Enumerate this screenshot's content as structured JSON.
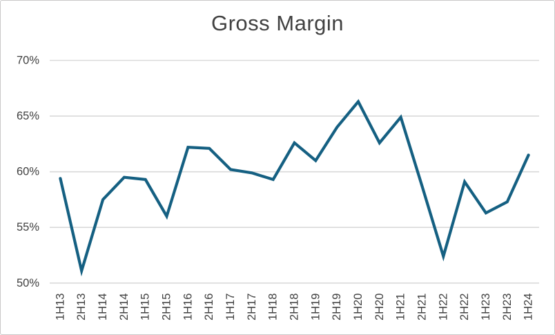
{
  "chart_data": {
    "type": "line",
    "title": "Gross Margin",
    "categories": [
      "1H13",
      "2H13",
      "1H14",
      "2H14",
      "1H15",
      "2H15",
      "1H16",
      "2H16",
      "1H17",
      "2H17",
      "1H18",
      "2H18",
      "1H19",
      "2H19",
      "1H20",
      "2H20",
      "1H21",
      "2H21",
      "1H22",
      "2H22",
      "1H23",
      "2H23",
      "1H24"
    ],
    "series": [
      {
        "name": "Gross Margin",
        "values": [
          59.4,
          51.1,
          57.5,
          59.5,
          59.3,
          56.0,
          62.2,
          62.1,
          60.2,
          59.9,
          59.3,
          62.6,
          61.0,
          64.0,
          66.3,
          62.6,
          64.9,
          58.7,
          52.4,
          59.1,
          56.3,
          57.3,
          61.5
        ]
      }
    ],
    "xlabel": "",
    "ylabel": "",
    "ylim": [
      50,
      70
    ],
    "ytick_step": 5,
    "ytick_labels": [
      "50%",
      "55%",
      "60%",
      "65%",
      "70%"
    ],
    "grid": "horizontal",
    "legend": "none",
    "colors": {
      "line": "#156082",
      "gridline": "#d9d9d9",
      "tick_text": "#404040",
      "title_text": "#404040",
      "background": "#ffffff",
      "frame_border": "#c9c7c7"
    }
  }
}
